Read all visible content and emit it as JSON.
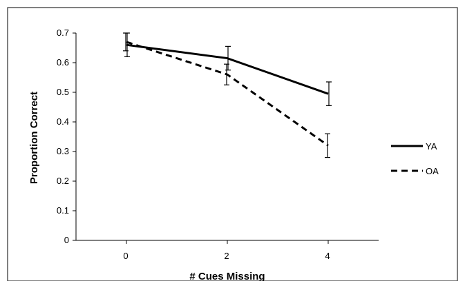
{
  "chart_data": {
    "type": "line",
    "title": "",
    "xlabel": "# Cues Missing",
    "ylabel": "Proportion Correct",
    "categories": [
      "0",
      "2",
      "4"
    ],
    "x": [
      0,
      2,
      4
    ],
    "ylim": [
      0,
      0.7
    ],
    "yticks": [
      "0",
      "0.1",
      "0.2",
      "0.3",
      "0.4",
      "0.5",
      "0.6",
      "0.7"
    ],
    "grid": false,
    "legend_position": "right",
    "series": [
      {
        "name": "YA",
        "style": "solid",
        "color": "#000000",
        "values": [
          0.66,
          0.615,
          0.495
        ],
        "error": [
          0.04,
          0.04,
          0.04
        ]
      },
      {
        "name": "OA",
        "style": "dashed",
        "color": "#000000",
        "values": [
          0.67,
          0.56,
          0.32
        ],
        "error": [
          0.03,
          0.035,
          0.04
        ]
      }
    ]
  }
}
